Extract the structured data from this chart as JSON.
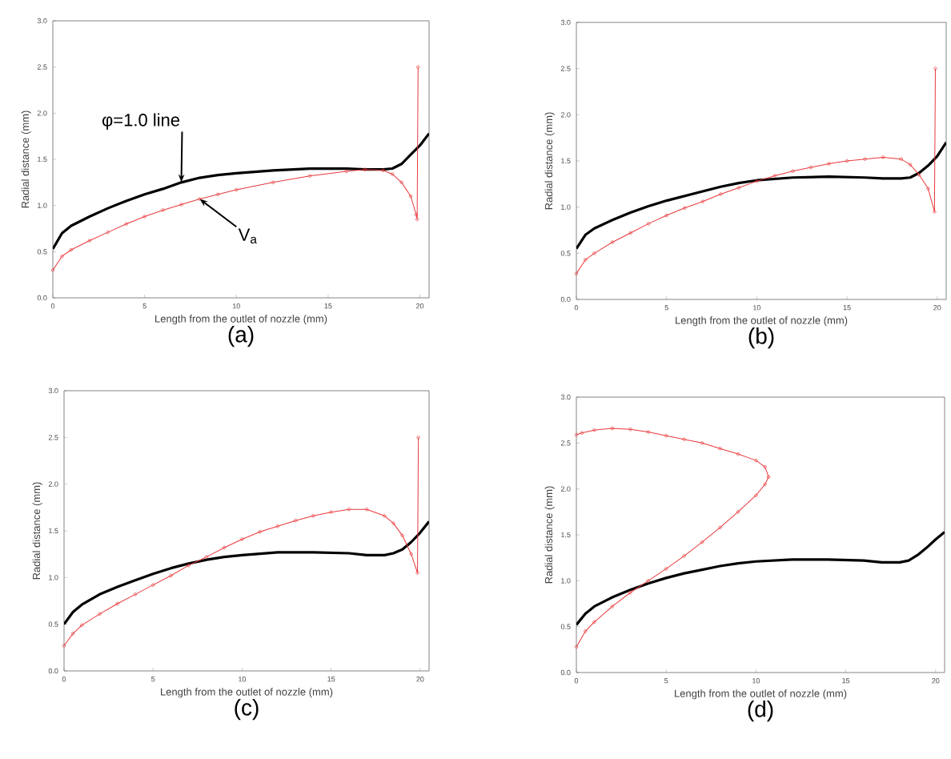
{
  "chart_data": [
    {
      "type": "line",
      "title": "(a)",
      "xlabel": "Length from the outlet of nozzle (mm)",
      "ylabel": "Radial distance (mm)",
      "xlim": [
        0,
        20.5
      ],
      "ylim": [
        0,
        3
      ],
      "xticks": [
        0,
        5,
        10,
        15,
        20
      ],
      "yticks": [
        {
          "value": 0,
          "label": "0.0"
        },
        0.5,
        {
          "value": 1,
          "label": "1.0"
        },
        1.5,
        {
          "value": 2,
          "label": "2.0"
        },
        2.5,
        {
          "value": 3,
          "label": "3.0"
        }
      ],
      "annotations": [
        {
          "text": "φ=1.0 line",
          "x": 7,
          "y": 1.25
        },
        {
          "text": "V$_{a}$",
          "x": 8,
          "y": 1.07
        }
      ],
      "series": [
        {
          "color": "#000000",
          "marker": "none",
          "x": [
            0,
            0.5,
            1,
            2,
            3,
            4,
            5,
            6,
            7,
            8,
            9,
            10,
            12,
            14,
            16,
            17,
            18,
            18.5,
            19,
            19.5,
            20,
            20.5
          ],
          "values": [
            0.53,
            0.7,
            0.78,
            0.88,
            0.97,
            1.05,
            1.12,
            1.18,
            1.25,
            1.3,
            1.33,
            1.35,
            1.38,
            1.4,
            1.4,
            1.39,
            1.39,
            1.4,
            1.45,
            1.55,
            1.65,
            1.78
          ]
        },
        {
          "color": "#e8393c",
          "marker": "circle",
          "x": [
            0,
            0.5,
            1,
            2,
            3,
            4,
            5,
            6,
            7,
            8,
            9,
            10,
            12,
            14,
            16,
            17,
            18,
            18.5,
            19,
            19.5,
            19.8,
            19.85,
            19.9
          ],
          "values": [
            0.3,
            0.45,
            0.52,
            0.62,
            0.71,
            0.8,
            0.88,
            0.95,
            1.01,
            1.07,
            1.12,
            1.17,
            1.25,
            1.32,
            1.37,
            1.39,
            1.38,
            1.34,
            1.25,
            1.1,
            0.9,
            0.85,
            2.5
          ]
        }
      ]
    },
    {
      "type": "line",
      "title": "(b)",
      "xlabel": "Length from the outlet of nozzle (mm)",
      "ylabel": "Radial distance (mm)",
      "xlim": [
        0,
        20.5
      ],
      "ylim": [
        0,
        3
      ],
      "xticks": [
        0,
        5,
        10,
        15,
        20
      ],
      "yticks": [
        {
          "value": 0,
          "label": "0.0"
        },
        0.5,
        {
          "value": 1,
          "label": "1.0"
        },
        1.5,
        {
          "value": 2,
          "label": "2.0"
        },
        2.5,
        {
          "value": 3,
          "label": "3.0"
        }
      ],
      "series": [
        {
          "color": "#000000",
          "marker": "none",
          "x": [
            0,
            0.5,
            1,
            2,
            3,
            4,
            5,
            6,
            7,
            8,
            9,
            10,
            12,
            14,
            16,
            17,
            18,
            18.5,
            19,
            19.5,
            20,
            20.5
          ],
          "values": [
            0.55,
            0.7,
            0.77,
            0.86,
            0.94,
            1.01,
            1.07,
            1.12,
            1.17,
            1.22,
            1.26,
            1.29,
            1.32,
            1.33,
            1.32,
            1.31,
            1.31,
            1.32,
            1.37,
            1.45,
            1.55,
            1.7
          ]
        },
        {
          "color": "#e8393c",
          "marker": "circle",
          "x": [
            0,
            0.5,
            1,
            2,
            3,
            4,
            5,
            6,
            7,
            8,
            9,
            10,
            11,
            12,
            13,
            14,
            15,
            16,
            17,
            18,
            18.5,
            19,
            19.5,
            19.85,
            19.9
          ],
          "values": [
            0.28,
            0.43,
            0.5,
            0.62,
            0.72,
            0.82,
            0.91,
            0.99,
            1.06,
            1.14,
            1.21,
            1.28,
            1.34,
            1.39,
            1.43,
            1.47,
            1.5,
            1.52,
            1.54,
            1.52,
            1.46,
            1.35,
            1.2,
            0.95,
            2.5
          ]
        }
      ]
    },
    {
      "type": "line",
      "title": "(c)",
      "xlabel": "Length from the outlet of nozzle (mm)",
      "ylabel": "Radial distance (mm)",
      "xlim": [
        0,
        20.5
      ],
      "ylim": [
        0,
        3
      ],
      "xticks": [
        0,
        5,
        10,
        15,
        20
      ],
      "yticks": [
        {
          "value": 0,
          "label": "0.0"
        },
        0.5,
        {
          "value": 1,
          "label": "1.0"
        },
        1.5,
        {
          "value": 2,
          "label": "2.0"
        },
        2.5,
        {
          "value": 3,
          "label": "3.0"
        }
      ],
      "series": [
        {
          "color": "#000000",
          "marker": "none",
          "x": [
            0,
            0.5,
            1,
            2,
            3,
            4,
            5,
            6,
            7,
            8,
            9,
            10,
            12,
            14,
            16,
            17,
            18,
            18.5,
            19,
            19.5,
            20,
            20.5
          ],
          "values": [
            0.5,
            0.63,
            0.71,
            0.82,
            0.9,
            0.97,
            1.04,
            1.1,
            1.15,
            1.19,
            1.22,
            1.24,
            1.27,
            1.27,
            1.26,
            1.24,
            1.24,
            1.26,
            1.3,
            1.38,
            1.48,
            1.6
          ]
        },
        {
          "color": "#e8393c",
          "marker": "circle",
          "x": [
            0,
            0.5,
            1,
            2,
            3,
            4,
            5,
            6,
            7,
            8,
            9,
            10,
            11,
            12,
            13,
            14,
            15,
            16,
            17,
            18,
            18.5,
            19,
            19.5,
            19.85,
            19.9
          ],
          "values": [
            0.27,
            0.4,
            0.49,
            0.61,
            0.72,
            0.82,
            0.92,
            1.02,
            1.13,
            1.22,
            1.32,
            1.41,
            1.49,
            1.55,
            1.61,
            1.66,
            1.7,
            1.73,
            1.73,
            1.66,
            1.58,
            1.45,
            1.25,
            1.05,
            2.5
          ]
        }
      ]
    },
    {
      "type": "line",
      "title": "(d)",
      "xlabel": "Length from the outlet of nozzle (mm)",
      "ylabel": "Radial distance (mm)",
      "xlim": [
        0,
        20.5
      ],
      "ylim": [
        0,
        3
      ],
      "xticks": [
        0,
        5,
        10,
        15,
        20
      ],
      "yticks": [
        {
          "value": 0,
          "label": "0.0"
        },
        0.5,
        {
          "value": 1,
          "label": "1.0"
        },
        1.5,
        {
          "value": 2,
          "label": "2.0"
        },
        2.5,
        {
          "value": 3,
          "label": "3.0"
        }
      ],
      "series": [
        {
          "color": "#000000",
          "marker": "none",
          "x": [
            0,
            0.5,
            1,
            2,
            3,
            4,
            5,
            6,
            7,
            8,
            9,
            10,
            12,
            14,
            16,
            17,
            18,
            18.5,
            19,
            19.5,
            20,
            20.5
          ],
          "values": [
            0.52,
            0.64,
            0.72,
            0.82,
            0.9,
            0.97,
            1.03,
            1.08,
            1.12,
            1.16,
            1.19,
            1.21,
            1.23,
            1.23,
            1.22,
            1.2,
            1.2,
            1.22,
            1.28,
            1.36,
            1.45,
            1.53
          ]
        },
        {
          "color": "#e8393c",
          "marker": "circle",
          "x": [
            0,
            0.5,
            1,
            2,
            3,
            4,
            5,
            6,
            7,
            8,
            9,
            10,
            10.5,
            10.7,
            10.5,
            10,
            9,
            8,
            7,
            6,
            5,
            4,
            3,
            2,
            1,
            0.3,
            0
          ],
          "values": [
            0.28,
            0.45,
            0.55,
            0.72,
            0.87,
            1.0,
            1.13,
            1.27,
            1.42,
            1.58,
            1.75,
            1.93,
            2.05,
            2.13,
            2.24,
            2.31,
            2.38,
            2.44,
            2.5,
            2.54,
            2.58,
            2.62,
            2.65,
            2.66,
            2.64,
            2.61,
            2.59
          ]
        }
      ]
    }
  ]
}
